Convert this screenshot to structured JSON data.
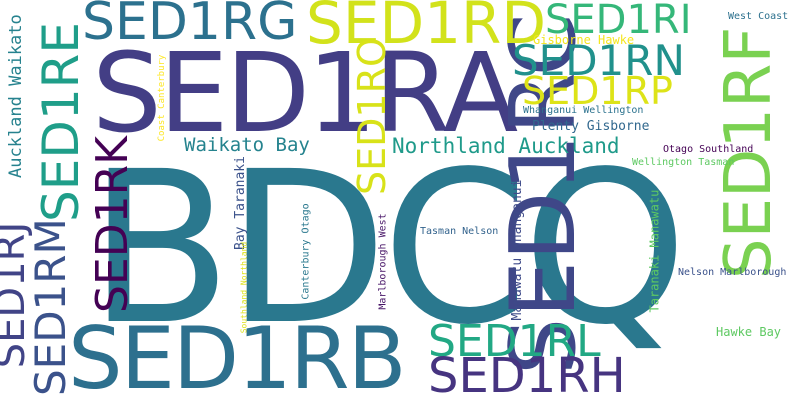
{
  "words": [
    {
      "text": "BDCQ",
      "color": "#2a788e",
      "vertical": false
    },
    {
      "text": "SED1RA",
      "color": "#433e85",
      "vertical": false
    },
    {
      "text": "SED1RB",
      "color": "#2d708e",
      "vertical": false
    },
    {
      "text": "SED1RC",
      "color": "#3f4788",
      "vertical": true
    },
    {
      "text": "SED1RF",
      "color": "#7ad151",
      "vertical": true
    },
    {
      "text": "SED1RG",
      "color": "#2c718e",
      "vertical": false
    },
    {
      "text": "SED1RD",
      "color": "#d2e21b",
      "vertical": false
    },
    {
      "text": "SED1RI",
      "color": "#35b779",
      "vertical": false
    },
    {
      "text": "SED1RN",
      "color": "#21918c",
      "vertical": false
    },
    {
      "text": "SED1RP",
      "color": "#dde318",
      "vertical": false
    },
    {
      "text": "SED1RO",
      "color": "#d8e219",
      "vertical": true
    },
    {
      "text": "SED1RE",
      "color": "#1f9e89",
      "vertical": true
    },
    {
      "text": "SED1RK",
      "color": "#440154",
      "vertical": true
    },
    {
      "text": "SED1RJ",
      "color": "#414487",
      "vertical": true
    },
    {
      "text": "SED1RM",
      "color": "#3b528b",
      "vertical": true
    },
    {
      "text": "SED1RL",
      "color": "#22a884",
      "vertical": false
    },
    {
      "text": "SED1RH",
      "color": "#463480",
      "vertical": false
    },
    {
      "text": "Auckland Waikato",
      "color": "#26828e",
      "vertical": true
    },
    {
      "text": "Northland Auckland",
      "color": "#1f9a8a",
      "vertical": false
    },
    {
      "text": "Waikato Bay",
      "color": "#25838e",
      "vertical": false
    },
    {
      "text": "Plenty Gisborne",
      "color": "#31688e",
      "vertical": false
    },
    {
      "text": "Gisborne Hawke",
      "color": "#f4e61e",
      "vertical": false
    },
    {
      "text": "West Coast",
      "color": "#2d718e",
      "vertical": false
    },
    {
      "text": "Whanganui Wellington",
      "color": "#2c728e",
      "vertical": false
    },
    {
      "text": "Otago Southland",
      "color": "#440154",
      "vertical": false
    },
    {
      "text": "Wellington Tasman",
      "color": "#5ec962",
      "vertical": false
    },
    {
      "text": "Coast Canterbury",
      "color": "#fde725",
      "vertical": true
    },
    {
      "text": "Bay Taranaki",
      "color": "#3b528b",
      "vertical": true
    },
    {
      "text": "Canterbury Otago",
      "color": "#2a788e",
      "vertical": true
    },
    {
      "text": "Southland Northland",
      "color": "#dde318",
      "vertical": true
    },
    {
      "text": "Marlborough West",
      "color": "#481668",
      "vertical": true
    },
    {
      "text": "Tasman Nelson",
      "color": "#33638d",
      "vertical": false
    },
    {
      "text": "Manawatu Whanganui",
      "color": "#3e4a89",
      "vertical": true
    },
    {
      "text": "Taranaki Manawatu",
      "color": "#5ec962",
      "vertical": true
    },
    {
      "text": "Nelson Marlborough",
      "color": "#3b528b",
      "vertical": false
    },
    {
      "text": "Hawke Bay",
      "color": "#5ec962",
      "vertical": false
    }
  ]
}
